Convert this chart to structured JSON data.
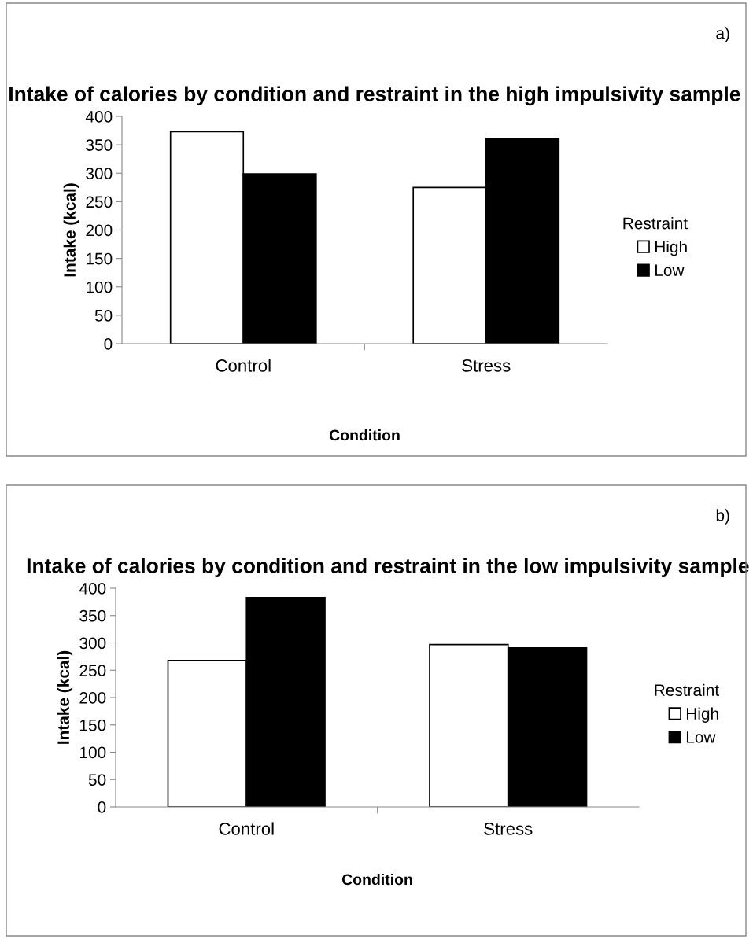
{
  "chart_data": [
    {
      "type": "bar",
      "title": "Intake of calories by condition and restraint in the high impulsivity sample",
      "xlabel": "Condition",
      "ylabel": "Intake (kcal)",
      "legend_title": "Restraint",
      "annotations": [
        "a)"
      ],
      "categories": [
        "Control",
        "Stress"
      ],
      "series": [
        {
          "name": "High",
          "color": "#ffffff",
          "values": [
            373,
            275
          ]
        },
        {
          "name": "Low",
          "color": "#000000",
          "values": [
            299,
            361
          ]
        }
      ],
      "ylim": [
        0,
        400
      ],
      "yticks": [
        0,
        50,
        100,
        150,
        200,
        250,
        300,
        350,
        400
      ],
      "legend": "right"
    },
    {
      "type": "bar",
      "title": "Intake of calories by condition and restraint in the low impulsivity sample",
      "xlabel": "Condition",
      "ylabel": "Intake (kcal)",
      "legend_title": "Restraint",
      "annotations": [
        "b)"
      ],
      "categories": [
        "Control",
        "Stress"
      ],
      "series": [
        {
          "name": "High",
          "color": "#ffffff",
          "values": [
            268,
            297
          ]
        },
        {
          "name": "Low",
          "color": "#000000",
          "values": [
            383,
            291
          ]
        }
      ],
      "ylim": [
        0,
        400
      ],
      "yticks": [
        0,
        50,
        100,
        150,
        200,
        250,
        300,
        350,
        400
      ],
      "legend": "right"
    }
  ]
}
